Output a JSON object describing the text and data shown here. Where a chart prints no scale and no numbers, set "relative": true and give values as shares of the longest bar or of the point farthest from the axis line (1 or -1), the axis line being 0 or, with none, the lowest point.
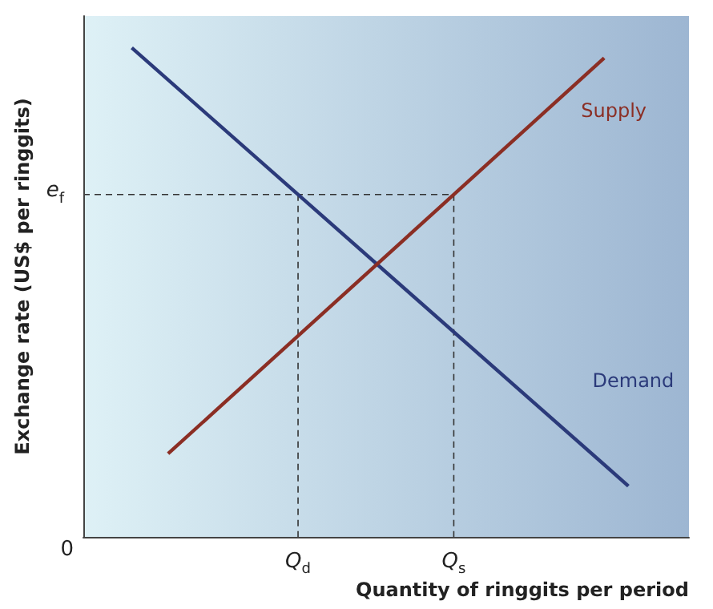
{
  "chart_data": {
    "type": "line",
    "relative": true,
    "xlabel": "Quantity of ringgits per period",
    "ylabel": "Exchange rate (US$ per ringgits)",
    "categories": [
      null,
      null,
      null,
      null,
      null,
      null,
      null,
      null,
      null,
      null,
      null,
      null,
      null,
      null,
      null,
      null,
      null,
      null,
      null,
      null,
      null,
      null,
      null,
      null,
      null,
      null,
      null,
      null,
      null,
      null,
      null,
      null,
      null,
      null,
      null,
      null,
      null,
      null,
      null,
      null,
      null,
      null,
      null,
      null,
      null,
      null,
      null,
      null,
      null,
      null,
      null
    ],
    "series": [
      {
        "name": "Demand",
        "color": "#2b3a7a",
        "values": [
          null,
          null,
          null,
          null,
          1,
          null,
          null,
          null,
          null,
          null,
          null,
          null,
          null,
          null,
          null,
          null,
          null,
          null,
          null,
          null,
          null,
          null,
          null,
          null,
          null,
          null,
          null,
          null,
          null,
          null,
          null,
          null,
          null,
          null,
          null,
          null,
          null,
          null,
          null,
          null,
          null,
          null,
          null,
          null,
          null,
          0.104,
          null,
          null,
          null,
          null,
          null
        ]
      },
      {
        "name": "Supply",
        "color": "#8b2e24",
        "values": [
          null,
          null,
          null,
          null,
          null,
          null,
          null,
          0.17,
          null,
          null,
          null,
          null,
          null,
          null,
          null,
          null,
          null,
          null,
          null,
          null,
          null,
          null,
          null,
          null,
          null,
          null,
          null,
          null,
          null,
          null,
          null,
          null,
          null,
          null,
          null,
          null,
          null,
          null,
          null,
          null,
          null,
          null,
          null,
          0.979,
          null,
          null,
          null,
          null,
          null,
          null,
          null
        ]
      }
    ],
    "ref_lines": [
      {
        "axis": "y",
        "value": 0.7,
        "line_style": "dashed",
        "label": "e$_{f}$"
      }
    ],
    "annotations": [
      "0",
      "Q$_{d}$",
      "Q$_{s}$"
    ],
    "line_style": "solid"
  }
}
